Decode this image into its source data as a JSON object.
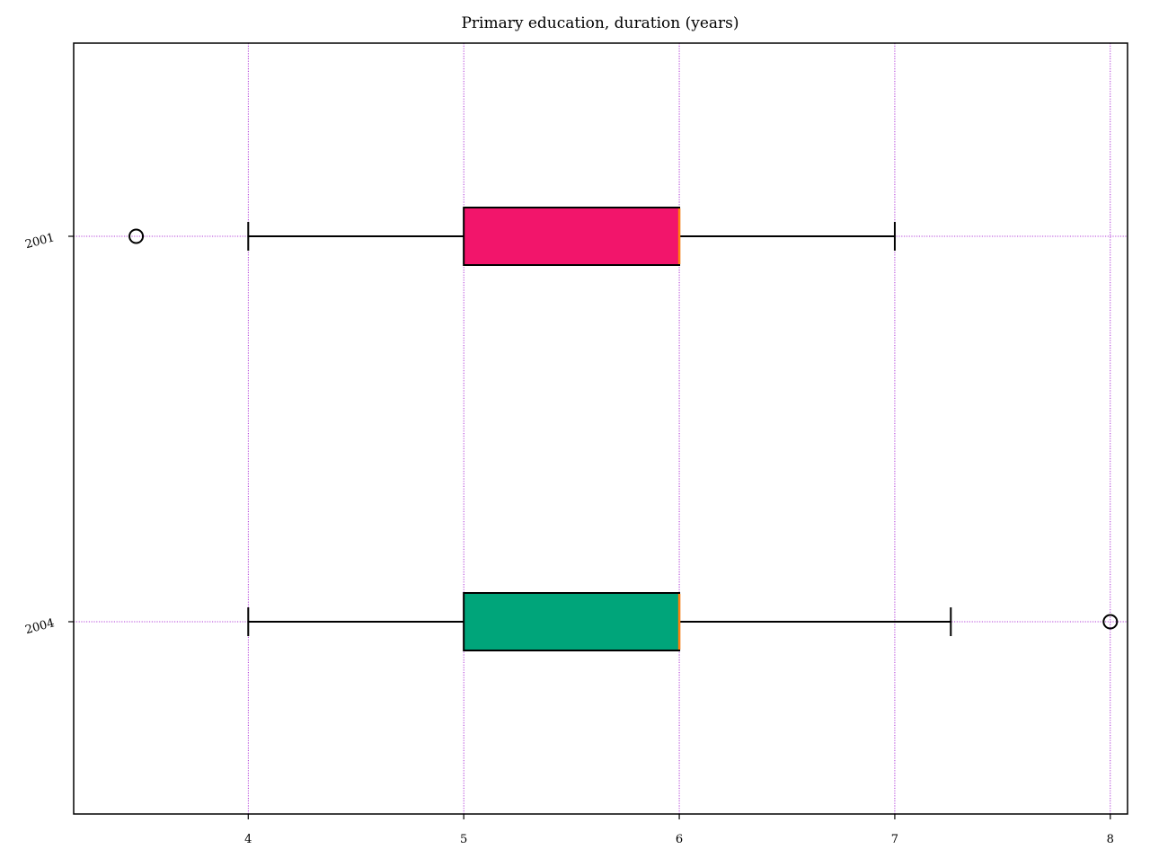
{
  "chart_data": {
    "type": "box",
    "orientation": "horizontal",
    "title": "Primary education, duration (years)",
    "xlabel": "",
    "ylabel": "",
    "xlim": [
      3.19,
      8.08
    ],
    "x_ticks": [
      "4",
      "5",
      "6",
      "7",
      "8"
    ],
    "grid": true,
    "grid_color": "#9900cc",
    "median_color": "#ff7f0e",
    "categories": [
      "2001",
      "2004"
    ],
    "series": [
      {
        "category": "2001",
        "whisker_low": 4,
        "q1": 5,
        "median": 6,
        "q3": 6,
        "whisker_high": 7,
        "outliers": [
          3.48
        ],
        "color": "#f2156b"
      },
      {
        "category": "2004",
        "whisker_low": 4,
        "q1": 5,
        "median": 6,
        "q3": 6,
        "whisker_high": 7.26,
        "outliers": [
          8
        ],
        "color": "#00a57a"
      }
    ]
  }
}
